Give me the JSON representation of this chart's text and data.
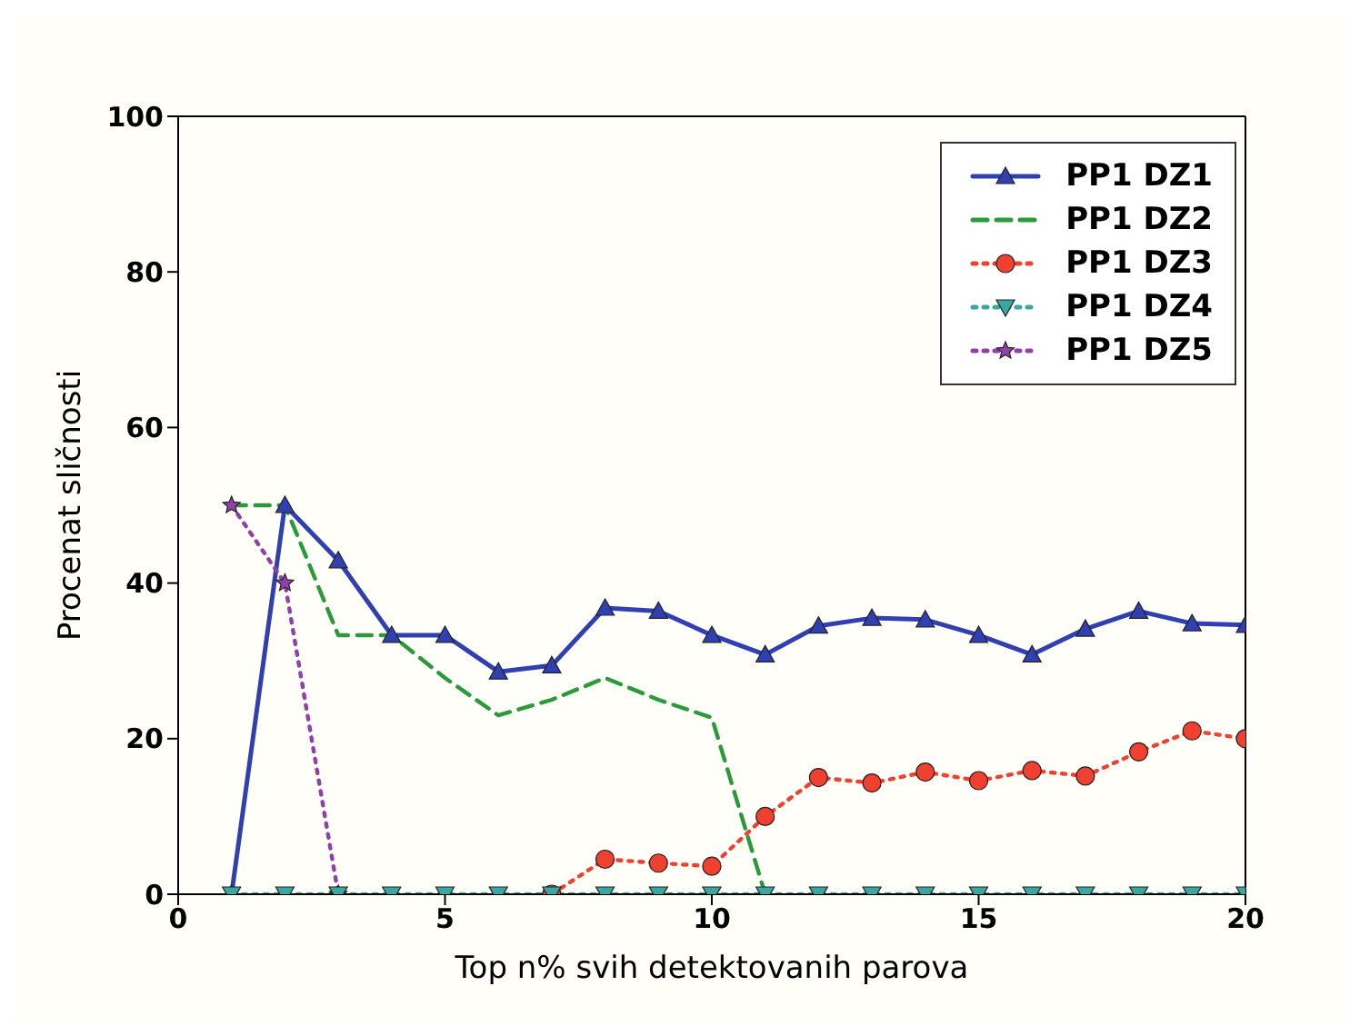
{
  "chart_data": {
    "type": "line",
    "xlabel": "Top n% svih detektovanih parova",
    "ylabel": "Procenat sličnosti",
    "x": [
      1,
      2,
      3,
      4,
      5,
      6,
      7,
      8,
      9,
      10,
      11,
      12,
      13,
      14,
      15,
      16,
      17,
      18,
      19,
      20
    ],
    "xlim": [
      0,
      20
    ],
    "xticks": [
      0,
      5,
      10,
      15,
      20
    ],
    "ylim": [
      0,
      100
    ],
    "yticks": [
      0,
      20,
      40,
      60,
      80,
      100
    ],
    "grid": false,
    "legend": "top right",
    "series": [
      {
        "name": "PP1 DZ1",
        "color": "#3040b0",
        "marker": "triangle",
        "line_style": "solid",
        "values": [
          0,
          50,
          42.9,
          33.3,
          33.3,
          28.6,
          29.4,
          36.8,
          36.4,
          33.3,
          30.8,
          34.5,
          35.5,
          35.3,
          33.3,
          30.8,
          34.1,
          36.4,
          34.8,
          34.6
        ]
      },
      {
        "name": "PP1 DZ2",
        "color": "#2a9a3a",
        "marker": "none",
        "line_style": "dashed",
        "values": [
          50,
          50,
          33.3,
          33.3,
          27.8,
          23,
          25,
          27.8,
          25,
          22.7,
          0,
          null,
          null,
          null,
          null,
          null,
          null,
          null,
          null,
          null
        ]
      },
      {
        "name": "PP1 DZ3",
        "color": "#f04030",
        "marker": "circle",
        "line_style": "dotted",
        "values": [
          null,
          null,
          null,
          null,
          null,
          null,
          0,
          4.5,
          4,
          3.6,
          10,
          15,
          14.3,
          15.7,
          14.6,
          15.9,
          15.2,
          18.3,
          21,
          20
        ]
      },
      {
        "name": "PP1 DZ4",
        "color": "#3aa8a0",
        "marker": "triangle-down",
        "line_style": "dotted",
        "values": [
          0,
          0,
          0,
          0,
          0,
          0,
          0,
          0,
          0,
          0,
          0,
          0,
          0,
          0,
          0,
          0,
          0,
          0,
          0,
          0
        ]
      },
      {
        "name": "PP1 DZ5",
        "color": "#9040a8",
        "marker": "star",
        "line_style": "dotted",
        "values": [
          50,
          40,
          0,
          null,
          null,
          null,
          null,
          null,
          null,
          null,
          null,
          null,
          null,
          null,
          null,
          null,
          null,
          null,
          null,
          null
        ]
      }
    ]
  }
}
